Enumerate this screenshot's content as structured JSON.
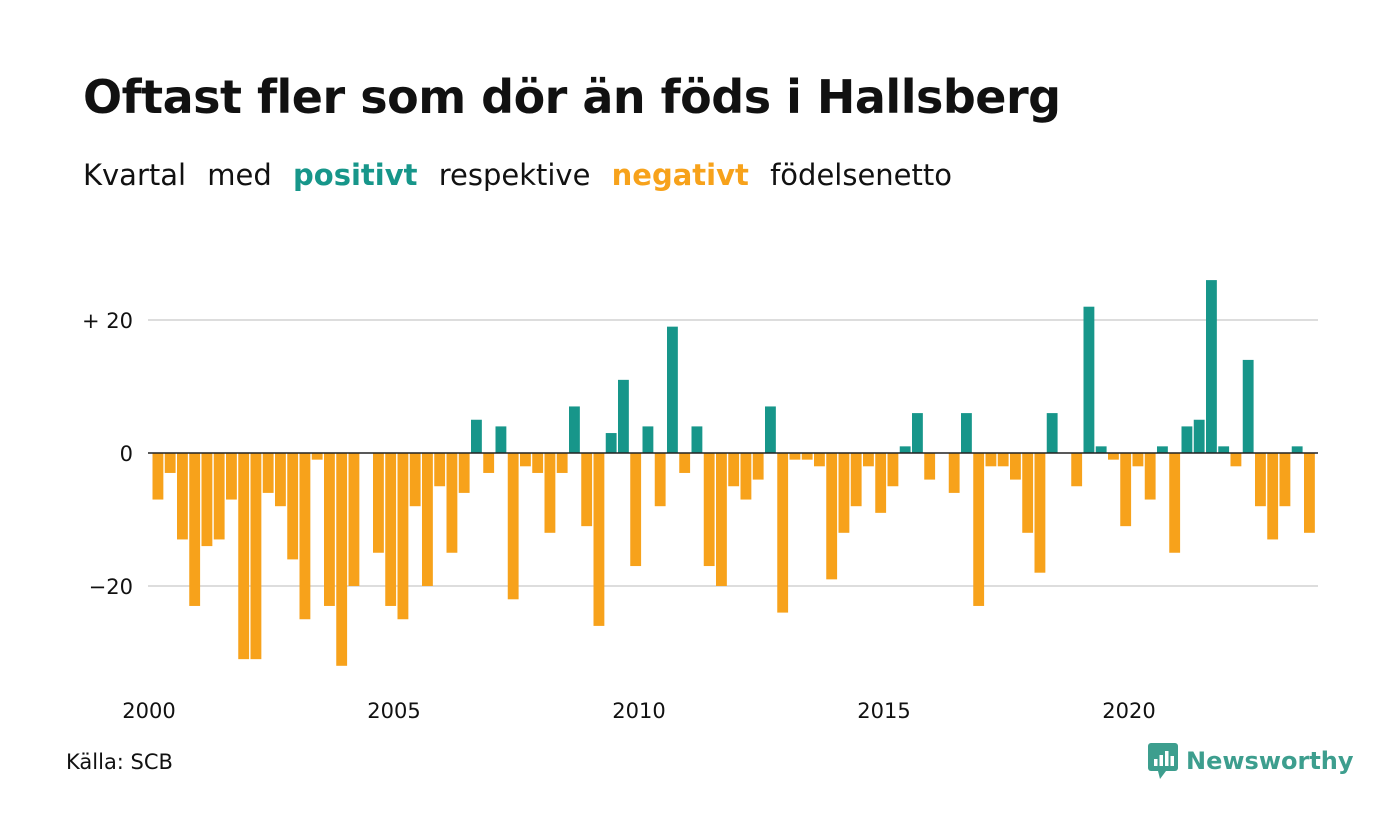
{
  "title": "Oftast fler som dör än föds i Hallsberg",
  "subtitle": {
    "word1": "Kvartal",
    "word2": "med",
    "positive": "positivt",
    "word3": "respektive",
    "negative": "negativt",
    "word4": "födelsenetto"
  },
  "source": "Källa: SCB",
  "brand": "Newsworthy",
  "colors": {
    "positive": "#17968a",
    "negative": "#f7a21b",
    "grid": "#dddddd",
    "brand": "#3d9e8e"
  },
  "chart_data": {
    "type": "bar",
    "title": "Oftast fler som dör än föds i Hallsberg",
    "xlabel": "",
    "ylabel": "",
    "x_start_year": 2000,
    "periods_per_year": 4,
    "x_tick_labels": [
      "2000",
      "2005",
      "2010",
      "2015",
      "2020"
    ],
    "y_tick_labels": [
      "+ 20",
      "0",
      "−20"
    ],
    "y_ticks": [
      20,
      0,
      -20
    ],
    "ylim": [
      -33,
      27
    ],
    "grid": true,
    "values": [
      -7,
      -3,
      -13,
      -23,
      -14,
      -13,
      -7,
      -31,
      -31,
      -6,
      -8,
      -16,
      -25,
      -1,
      -23,
      -32,
      -20,
      0,
      -15,
      -23,
      -25,
      -8,
      -20,
      -5,
      -15,
      -6,
      5,
      -3,
      4,
      -22,
      -2,
      -3,
      -12,
      -3,
      7,
      -11,
      -26,
      3,
      11,
      -17,
      4,
      -8,
      19,
      -3,
      4,
      -17,
      -20,
      -5,
      -7,
      -4,
      7,
      -24,
      -1,
      -1,
      -2,
      -19,
      -12,
      -8,
      -2,
      -9,
      -5,
      1,
      6,
      -4,
      0,
      -6,
      6,
      -23,
      -2,
      -2,
      -4,
      -12,
      -18,
      6,
      0,
      -5,
      22,
      1,
      -1,
      -11,
      -2,
      -7,
      1,
      -15,
      4,
      5,
      26,
      1,
      -2,
      14,
      -8,
      -13,
      -8,
      1,
      -12
    ]
  }
}
